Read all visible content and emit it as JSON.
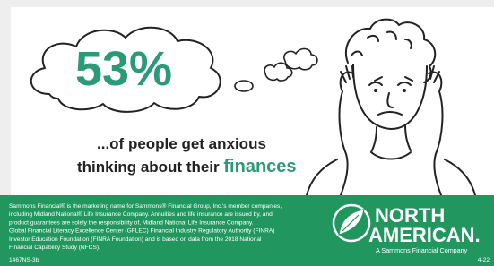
{
  "headline": {
    "stat": "53%",
    "line1": "...of people get anxious",
    "line2_prefix": "thinking about their",
    "line2_emphasis": "finances"
  },
  "footer": {
    "disclaimer": [
      "Sammons Financial® is the marketing name for Sammons® Financial Group, Inc.'s member companies,",
      "including Midland National® Life Insurance Company. Annuities and life insurance are issued by, and",
      "product guarantees are solely the responsibility of, Midland National Life Insurance Company.",
      "Global Financial Literacy Excellence Center (GFLEC) Financial Industry Regulatory Authority (FINRA)",
      "Investor Education Foundation (FINRA Foundation) and is based on data from the 2018 National",
      "Financial Capability Study (NFCS)."
    ],
    "code": "1467NS-3b",
    "date": "4-22"
  },
  "logo": {
    "line1": "NORTH",
    "line2": "AMERICAN.",
    "tagline": "A Sammons Financial Company"
  }
}
